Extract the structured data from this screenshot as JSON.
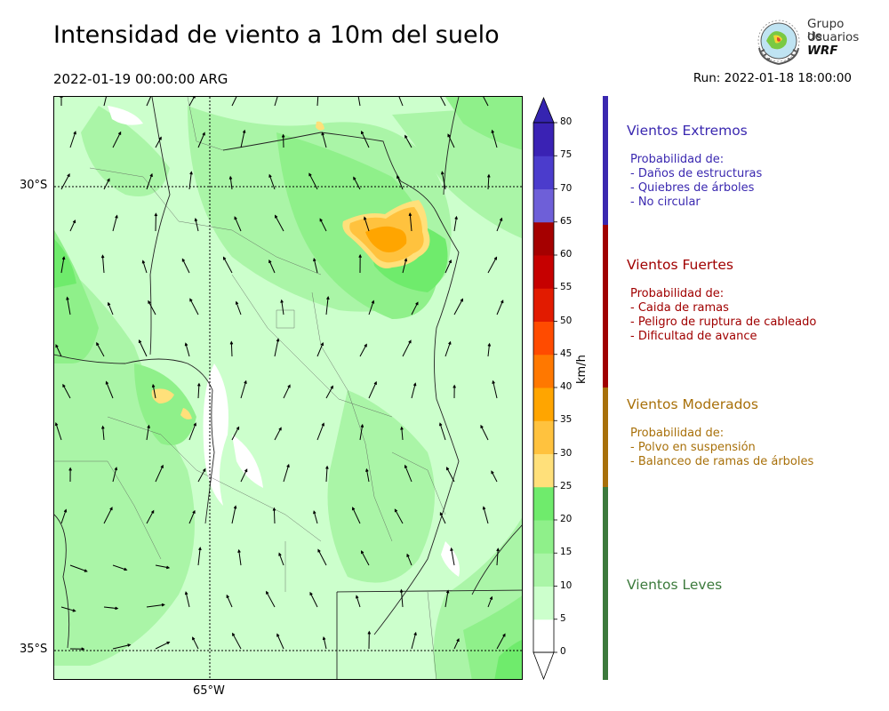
{
  "title": "Intensidad de viento a 10m del suelo",
  "valid_time": "2022-01-19 00:00:00 ARG",
  "run_time": "Run: 2022-01-18 18:00:00",
  "logo": {
    "line1": "Grupo de",
    "line2": "Usuarios",
    "line3": "WRF",
    "icon": "wrf-globe-laurel-logo"
  },
  "map": {
    "lat_labels": [
      "30°S",
      "35°S"
    ],
    "lon_labels": [
      "65°W"
    ]
  },
  "colorbar": {
    "unit": "km/h",
    "ticks": [
      "0",
      "5",
      "10",
      "15",
      "20",
      "25",
      "30",
      "35",
      "40",
      "45",
      "50",
      "55",
      "60",
      "65",
      "70",
      "75",
      "80"
    ],
    "colors": [
      "#ffffff",
      "#ccffcc",
      "#aaf5a7",
      "#8ff08a",
      "#6feb6c",
      "#ffe07a",
      "#ffc23e",
      "#ffa500",
      "#ff7800",
      "#ff4b00",
      "#e21b00",
      "#c60000",
      "#a50000",
      "#6e5fd8",
      "#4b3ccc",
      "#3a22b4"
    ],
    "overflow_color": "#3524b0"
  },
  "categories": [
    {
      "title": "Vientos Extremos",
      "color": "#3a28b0",
      "lines": [
        "Probabilidad de:",
        "- Daños de estructuras",
        "- Quiebres de árboles",
        "- No circular"
      ]
    },
    {
      "title": "Vientos Fuertes",
      "color": "#a00000",
      "lines": [
        "Probabilidad de:",
        "- Caida de ramas",
        "- Peligro de ruptura de cableado",
        "- Dificultad de avance"
      ]
    },
    {
      "title": "Vientos Moderados",
      "color": "#a8700a",
      "lines": [
        "Probabilidad de:",
        "- Polvo en suspensión",
        "- Balanceo de ramas de árboles"
      ]
    },
    {
      "title": "Vientos Leves",
      "color": "#3c7a3c",
      "lines": []
    }
  ]
}
